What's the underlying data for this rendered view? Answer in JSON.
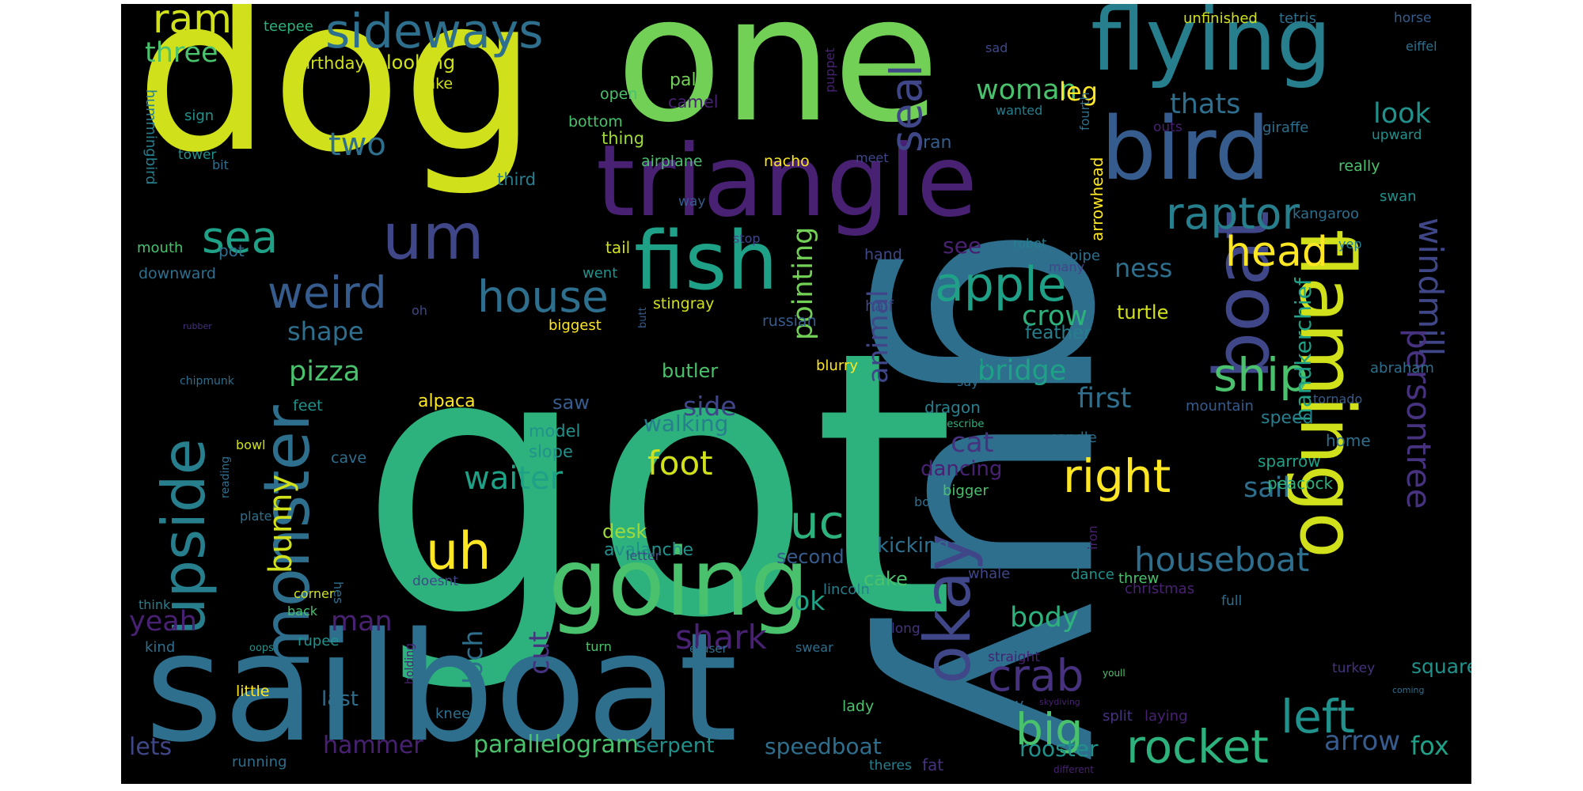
{
  "palette": [
    "#fde725",
    "#d0e11c",
    "#a0da39",
    "#73d056",
    "#4ac16d",
    "#2db27d",
    "#1fa187",
    "#21918c",
    "#277f8e",
    "#2e6f8e",
    "#365c8d",
    "#3f4788",
    "#46327e",
    "#482173",
    "#440154"
  ],
  "words": [
    {
      "text": "got",
      "color": "#2db27d"
    },
    {
      "text": "guy",
      "color": "#2e6f8e"
    },
    {
      "text": "dog",
      "color": "#d0e11c"
    },
    {
      "text": "one",
      "color": "#73d056"
    },
    {
      "text": "sailboat",
      "color": "#2e6f8e"
    },
    {
      "text": "triangle",
      "color": "#482173"
    },
    {
      "text": "going",
      "color": "#4ac16d"
    },
    {
      "text": "flying",
      "color": "#277f8e"
    },
    {
      "text": "fish",
      "color": "#1fa187"
    },
    {
      "text": "bird",
      "color": "#365c8d"
    },
    {
      "text": "flamingo",
      "color": "#d0e11c"
    },
    {
      "text": "boat",
      "color": "#3f4788"
    },
    {
      "text": "upside",
      "color": "#277f8e"
    },
    {
      "text": "monster",
      "color": "#2e6f8e"
    },
    {
      "text": "um",
      "color": "#3f4788"
    },
    {
      "text": "okay",
      "color": "#3f4788"
    },
    {
      "text": "sideways",
      "color": "#2e6f8e"
    },
    {
      "text": "ram",
      "color": "#d0e11c"
    },
    {
      "text": "seal",
      "color": "#3f4788"
    },
    {
      "text": "apple",
      "color": "#1fa187"
    },
    {
      "text": "raptor",
      "color": "#277f8e"
    },
    {
      "text": "head",
      "color": "#fde725"
    },
    {
      "text": "rocket",
      "color": "#2db27d"
    },
    {
      "text": "house",
      "color": "#2e6f8e"
    },
    {
      "text": "weird",
      "color": "#365c8d"
    },
    {
      "text": "sea",
      "color": "#1fa187"
    },
    {
      "text": "uh",
      "color": "#fde725"
    },
    {
      "text": "duck",
      "color": "#2db27d"
    },
    {
      "text": "crab",
      "color": "#46327e"
    },
    {
      "text": "big",
      "color": "#4ac16d"
    },
    {
      "text": "left",
      "color": "#21918c"
    },
    {
      "text": "right",
      "color": "#fde725"
    },
    {
      "text": "ship",
      "color": "#4ac16d"
    },
    {
      "text": "windmill",
      "color": "#3f4788"
    },
    {
      "text": "persontree",
      "color": "#46327e"
    },
    {
      "text": "houseboat",
      "color": "#2e6f8e"
    },
    {
      "text": "foot",
      "color": "#d0e11c"
    },
    {
      "text": "shark",
      "color": "#482173"
    },
    {
      "text": "waiter",
      "color": "#1fa187"
    },
    {
      "text": "bunny",
      "color": "#d0e11c"
    },
    {
      "text": "two",
      "color": "#2e6f8e"
    },
    {
      "text": "three",
      "color": "#4ac16d"
    },
    {
      "text": "woman",
      "color": "#4ac16d"
    },
    {
      "text": "leg",
      "color": "#fde725"
    },
    {
      "text": "thats",
      "color": "#2e6f8e"
    },
    {
      "text": "look",
      "color": "#21918c"
    },
    {
      "text": "shape",
      "color": "#2e6f8e"
    },
    {
      "text": "pizza",
      "color": "#4ac16d"
    },
    {
      "text": "bridge",
      "color": "#1fa187"
    },
    {
      "text": "crow",
      "color": "#2db27d"
    },
    {
      "text": "cat",
      "color": "#46327e"
    },
    {
      "text": "first",
      "color": "#2e6f8e"
    },
    {
      "text": "side",
      "color": "#3f4788"
    },
    {
      "text": "walking",
      "color": "#277f8e"
    },
    {
      "text": "pointing",
      "color": "#73d056"
    },
    {
      "text": "animal",
      "color": "#3f4788"
    },
    {
      "text": "sail",
      "color": "#2e6f8e"
    },
    {
      "text": "handkerchief",
      "color": "#1fa187"
    },
    {
      "text": "body",
      "color": "#2db27d"
    },
    {
      "text": "cut",
      "color": "#46327e"
    },
    {
      "text": "yeah",
      "color": "#482173"
    },
    {
      "text": "man",
      "color": "#482173"
    },
    {
      "text": "ok",
      "color": "#1fa187"
    },
    {
      "text": "loch",
      "color": "#2e6f8e"
    },
    {
      "text": "lets",
      "color": "#3f4788"
    },
    {
      "text": "hammer",
      "color": "#482173"
    },
    {
      "text": "parallelogram",
      "color": "#4ac16d"
    },
    {
      "text": "serpent",
      "color": "#21918c"
    },
    {
      "text": "speedboat",
      "color": "#2e6f8e"
    },
    {
      "text": "rooster",
      "color": "#21918c"
    },
    {
      "text": "arrow",
      "color": "#365c8d"
    },
    {
      "text": "fox",
      "color": "#1fa187"
    },
    {
      "text": "square",
      "color": "#21918c"
    },
    {
      "text": "last",
      "color": "#2e6f8e"
    },
    {
      "text": "ness",
      "color": "#2e6f8e"
    },
    {
      "text": "see",
      "color": "#482173"
    },
    {
      "text": "feather",
      "color": "#277f8e"
    },
    {
      "text": "turtle",
      "color": "#d0e11c"
    },
    {
      "text": "dancing",
      "color": "#482173"
    },
    {
      "text": "kicking",
      "color": "#2e6f8e"
    },
    {
      "text": "second",
      "color": "#365c8d"
    },
    {
      "text": "desk",
      "color": "#a0da39"
    },
    {
      "text": "avalanche",
      "color": "#21918c"
    },
    {
      "text": "cake",
      "color": "#4ac16d"
    },
    {
      "text": "saw",
      "color": "#365c8d"
    },
    {
      "text": "slope",
      "color": "#21918c"
    },
    {
      "text": "model",
      "color": "#21918c"
    },
    {
      "text": "butler",
      "color": "#4ac16d"
    },
    {
      "text": "alpaca",
      "color": "#fde725"
    },
    {
      "text": "speed",
      "color": "#277f8e"
    },
    {
      "text": "sparrow",
      "color": "#1fa187"
    },
    {
      "text": "peacock",
      "color": "#2db27d"
    },
    {
      "text": "home",
      "color": "#2e6f8e"
    },
    {
      "text": "birthday",
      "color": "#d0e11c"
    },
    {
      "text": "looking",
      "color": "#d0e11c"
    },
    {
      "text": "take",
      "color": "#d0e11c"
    },
    {
      "text": "palm",
      "color": "#73d056"
    },
    {
      "text": "camel",
      "color": "#482173"
    },
    {
      "text": "thing",
      "color": "#a0da39"
    },
    {
      "text": "bottom",
      "color": "#4ac16d"
    },
    {
      "text": "open",
      "color": "#4ac16d"
    },
    {
      "text": "airplane",
      "color": "#4ac16d"
    },
    {
      "text": "nacho",
      "color": "#fde725"
    },
    {
      "text": "third",
      "color": "#277f8e"
    },
    {
      "text": "way",
      "color": "#365c8d"
    },
    {
      "text": "tail",
      "color": "#d0e11c"
    },
    {
      "text": "went",
      "color": "#21918c"
    },
    {
      "text": "stingray",
      "color": "#d0e11c"
    },
    {
      "text": "biggest",
      "color": "#fde725"
    },
    {
      "text": "russian",
      "color": "#365c8d"
    },
    {
      "text": "half",
      "color": "#3f4788"
    },
    {
      "text": "blurry",
      "color": "#fde725"
    },
    {
      "text": "hand",
      "color": "#3f4788"
    },
    {
      "text": "stop",
      "color": "#3f4788"
    },
    {
      "text": "ran",
      "color": "#365c8d"
    },
    {
      "text": "meet",
      "color": "#3f4788"
    },
    {
      "text": "dragon",
      "color": "#277f8e"
    },
    {
      "text": "now",
      "color": "#2e6f8e"
    },
    {
      "text": "say",
      "color": "#2e6f8e"
    },
    {
      "text": "describe",
      "color": "#2db27d"
    },
    {
      "text": "bigger",
      "color": "#4ac16d"
    },
    {
      "text": "candle",
      "color": "#2e6f8e"
    },
    {
      "text": "boot",
      "color": "#2e6f8e"
    },
    {
      "text": "iron",
      "color": "#482173"
    },
    {
      "text": "whale",
      "color": "#3f4788"
    },
    {
      "text": "dance",
      "color": "#21918c"
    },
    {
      "text": "christmas",
      "color": "#482173"
    },
    {
      "text": "full",
      "color": "#2e6f8e"
    },
    {
      "text": "threw",
      "color": "#4ac16d"
    },
    {
      "text": "mountain",
      "color": "#365c8d"
    },
    {
      "text": "tornado",
      "color": "#365c8d"
    },
    {
      "text": "abraham",
      "color": "#2e6f8e"
    },
    {
      "text": "sad",
      "color": "#3f4788"
    },
    {
      "text": "eiffel",
      "color": "#2e6f8e"
    },
    {
      "text": "horse",
      "color": "#365c8d"
    },
    {
      "text": "unfinished",
      "color": "#d0e11c"
    },
    {
      "text": "tetris",
      "color": "#2e6f8e"
    },
    {
      "text": "teepee",
      "color": "#2db27d"
    },
    {
      "text": "puppet",
      "color": "#482173"
    },
    {
      "text": "wanted",
      "color": "#277f8e"
    },
    {
      "text": "fourth",
      "color": "#2e6f8e"
    },
    {
      "text": "arrowhead",
      "color": "#fde725"
    },
    {
      "text": "outs",
      "color": "#482173"
    },
    {
      "text": "giraffe",
      "color": "#2e6f8e"
    },
    {
      "text": "upward",
      "color": "#21918c"
    },
    {
      "text": "really",
      "color": "#4ac16d"
    },
    {
      "text": "swan",
      "color": "#21918c"
    },
    {
      "text": "kangaroo",
      "color": "#2e6f8e"
    },
    {
      "text": "yep",
      "color": "#277f8e"
    },
    {
      "text": "robot",
      "color": "#277f8e"
    },
    {
      "text": "pipe",
      "color": "#2e6f8e"
    },
    {
      "text": "many",
      "color": "#3f4788"
    },
    {
      "text": "sign",
      "color": "#21918c"
    },
    {
      "text": "tower",
      "color": "#21918c"
    },
    {
      "text": "bit",
      "color": "#2e6f8e"
    },
    {
      "text": "hummingbird",
      "color": "#277f8e"
    },
    {
      "text": "mouth",
      "color": "#4ac16d"
    },
    {
      "text": "pot",
      "color": "#2e6f8e"
    },
    {
      "text": "downward",
      "color": "#2e6f8e"
    },
    {
      "text": "oh",
      "color": "#3f4788"
    },
    {
      "text": "rubber",
      "color": "#46327e"
    },
    {
      "text": "feet",
      "color": "#21918c"
    },
    {
      "text": "bowl",
      "color": "#d0e11c"
    },
    {
      "text": "reading",
      "color": "#2e6f8e"
    },
    {
      "text": "cave",
      "color": "#2e6f8e"
    },
    {
      "text": "plate",
      "color": "#2e6f8e"
    },
    {
      "text": "chipmunk",
      "color": "#2e6f8e"
    },
    {
      "text": "butt",
      "color": "#365c8d"
    },
    {
      "text": "think",
      "color": "#277f8e"
    },
    {
      "text": "kind",
      "color": "#2e6f8e"
    },
    {
      "text": "back",
      "color": "#4ac16d"
    },
    {
      "text": "corner",
      "color": "#d0e11c"
    },
    {
      "text": "doesnt",
      "color": "#3f4788"
    },
    {
      "text": "hes",
      "color": "#2e6f8e"
    },
    {
      "text": "oops",
      "color": "#21918c"
    },
    {
      "text": "rupee",
      "color": "#21918c"
    },
    {
      "text": "little",
      "color": "#fde725"
    },
    {
      "text": "holding",
      "color": "#482173"
    },
    {
      "text": "knees",
      "color": "#2e6f8e"
    },
    {
      "text": "running",
      "color": "#2e6f8e"
    },
    {
      "text": "turn",
      "color": "#4ac16d"
    },
    {
      "text": "eraser",
      "color": "#2e6f8e"
    },
    {
      "text": "letter",
      "color": "#3f4788"
    },
    {
      "text": "lincoln",
      "color": "#277f8e"
    },
    {
      "text": "long",
      "color": "#46327e"
    },
    {
      "text": "swear",
      "color": "#2e6f8e"
    },
    {
      "text": "lady",
      "color": "#4ac16d"
    },
    {
      "text": "straight",
      "color": "#482173"
    },
    {
      "text": "away",
      "color": "#2e6f8e"
    },
    {
      "text": "skydiving",
      "color": "#482173"
    },
    {
      "text": "youll",
      "color": "#4ac16d"
    },
    {
      "text": "split",
      "color": "#46327e"
    },
    {
      "text": "laying",
      "color": "#482173"
    },
    {
      "text": "coming",
      "color": "#2e6f8e"
    },
    {
      "text": "theres",
      "color": "#277f8e"
    },
    {
      "text": "fat",
      "color": "#46327e"
    },
    {
      "text": "different",
      "color": "#482173"
    },
    {
      "text": "turkey",
      "color": "#46327e"
    }
  ]
}
